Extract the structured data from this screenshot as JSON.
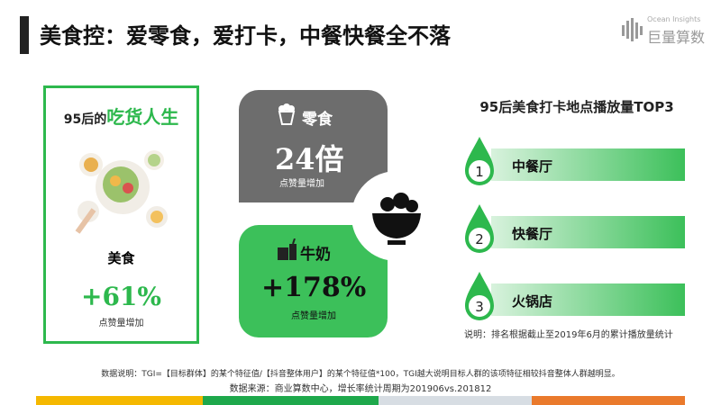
{
  "header": {
    "title": "美食控：爱零食，爱打卡，中餐快餐全不落",
    "logo_en": "Ocean Insights",
    "logo_cn": "巨量算数"
  },
  "left_card": {
    "title_prefix": "95后的",
    "title_highlight": "吃货人生",
    "label": "美食",
    "value": "+61%",
    "caption": "点赞量增加"
  },
  "snack_card": {
    "label": "零食",
    "value": "24倍",
    "caption": "点赞量增加"
  },
  "milk_card": {
    "label": "牛奶",
    "value": "+178%",
    "caption": "点赞量增加"
  },
  "ranking": {
    "title": "95后美食打卡地点播放量TOP3",
    "items": [
      {
        "rank": "1",
        "name": "中餐厅"
      },
      {
        "rank": "2",
        "name": "快餐厅"
      },
      {
        "rank": "3",
        "name": "火锅店"
      }
    ],
    "note": "说明：排名根据截止至2019年6月的累计播放量统计"
  },
  "footer": {
    "note": "数据说明：TGI=【目标群体】的某个特征值/【抖音整体用户】的某个特征值*100，TGI越大说明目标人群的该项特征相较抖音整体人群越明显。",
    "source": "数据来源：商业算数中心，增长率统计周期为201906vs.201812"
  }
}
